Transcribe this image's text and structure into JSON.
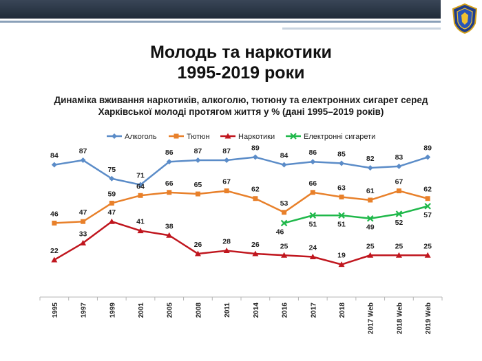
{
  "page": {
    "title_line1": "Молодь та наркотики",
    "title_line2": "1995-2019 роки",
    "subtitle_line1": "Динаміка вживання наркотиків, алкоголю, тютюну та електронних сигарет серед",
    "subtitle_line2": "Харківської молоді протягом життя у % (дані 1995–2019 років)",
    "colors": {
      "header": "#2b3645",
      "accent": "#8aa0b8"
    }
  },
  "chart_data": {
    "type": "line",
    "categories": [
      "1995",
      "1997",
      "1999",
      "2001",
      "2005",
      "2008",
      "2011",
      "2014",
      "2016",
      "2017",
      "2018",
      "2017 Web",
      "2018 Web",
      "2019 Web"
    ],
    "ylim": [
      0,
      100
    ],
    "grid": false,
    "legend_position": "top",
    "series": [
      {
        "name": "Алкоголь",
        "color": "#5b8cc8",
        "marker": "diamond",
        "values": [
          84,
          87,
          75,
          71,
          86,
          87,
          87,
          89,
          84,
          86,
          85,
          82,
          83,
          89
        ]
      },
      {
        "name": "Тютюн",
        "color": "#e8802a",
        "marker": "square",
        "values": [
          46,
          47,
          59,
          64,
          66,
          65,
          67,
          62,
          53,
          66,
          63,
          61,
          67,
          62
        ]
      },
      {
        "name": "Наркотики",
        "color": "#c0161e",
        "marker": "triangle",
        "values": [
          22,
          33,
          47,
          41,
          38,
          26,
          28,
          26,
          25,
          24,
          19,
          25,
          25,
          25
        ]
      },
      {
        "name": "Електронні сигарети",
        "color": "#1fb84a",
        "marker": "x",
        "values": [
          null,
          null,
          null,
          null,
          null,
          null,
          null,
          null,
          46,
          51,
          51,
          49,
          52,
          57
        ]
      }
    ]
  }
}
